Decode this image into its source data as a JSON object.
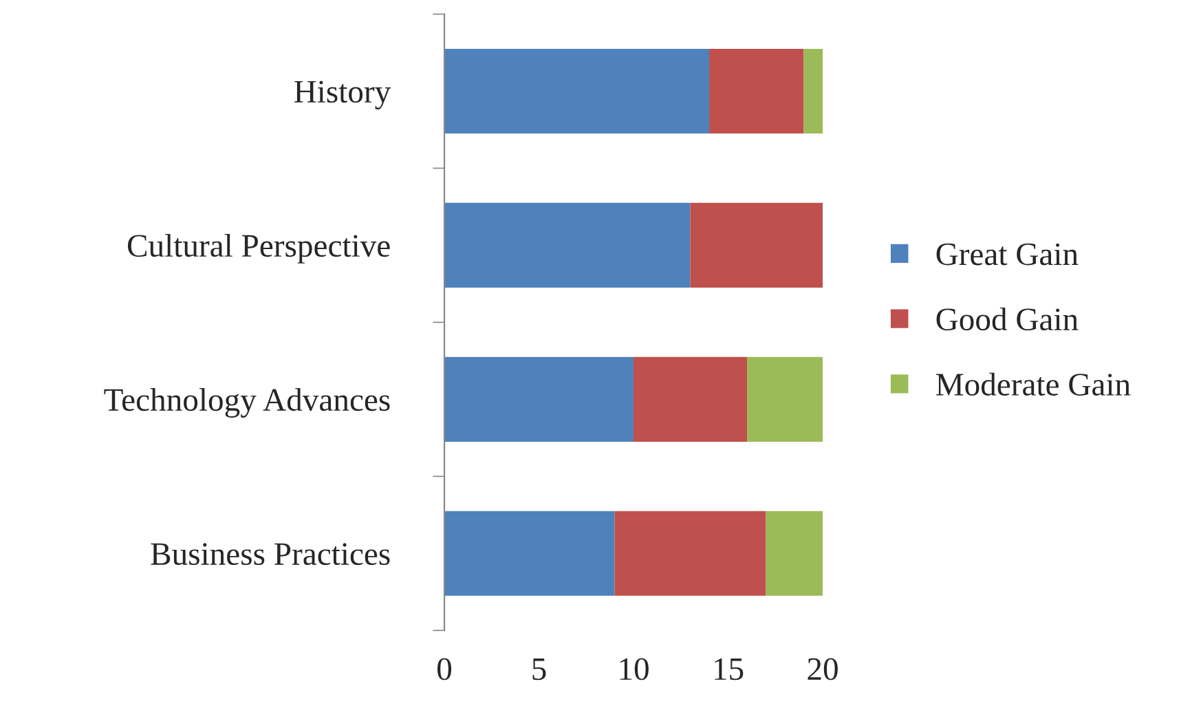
{
  "chart_data": {
    "type": "bar",
    "orientation": "horizontal",
    "stacked": true,
    "categories": [
      "History",
      "Cultural Perspective",
      "Technology Advances",
      "Business Practices"
    ],
    "series": [
      {
        "name": "Great Gain",
        "color": "#4f81bd",
        "values": [
          14,
          13,
          10,
          9
        ]
      },
      {
        "name": "Good Gain",
        "color": "#c0504d",
        "values": [
          5,
          7,
          6,
          8
        ]
      },
      {
        "name": "Moderate Gain",
        "color": "#9bbb59",
        "values": [
          1,
          0,
          4,
          3
        ]
      }
    ],
    "xlim": [
      0,
      20
    ],
    "xticks": [
      0,
      5,
      10,
      15,
      20
    ],
    "grid": false,
    "legend": "right"
  }
}
